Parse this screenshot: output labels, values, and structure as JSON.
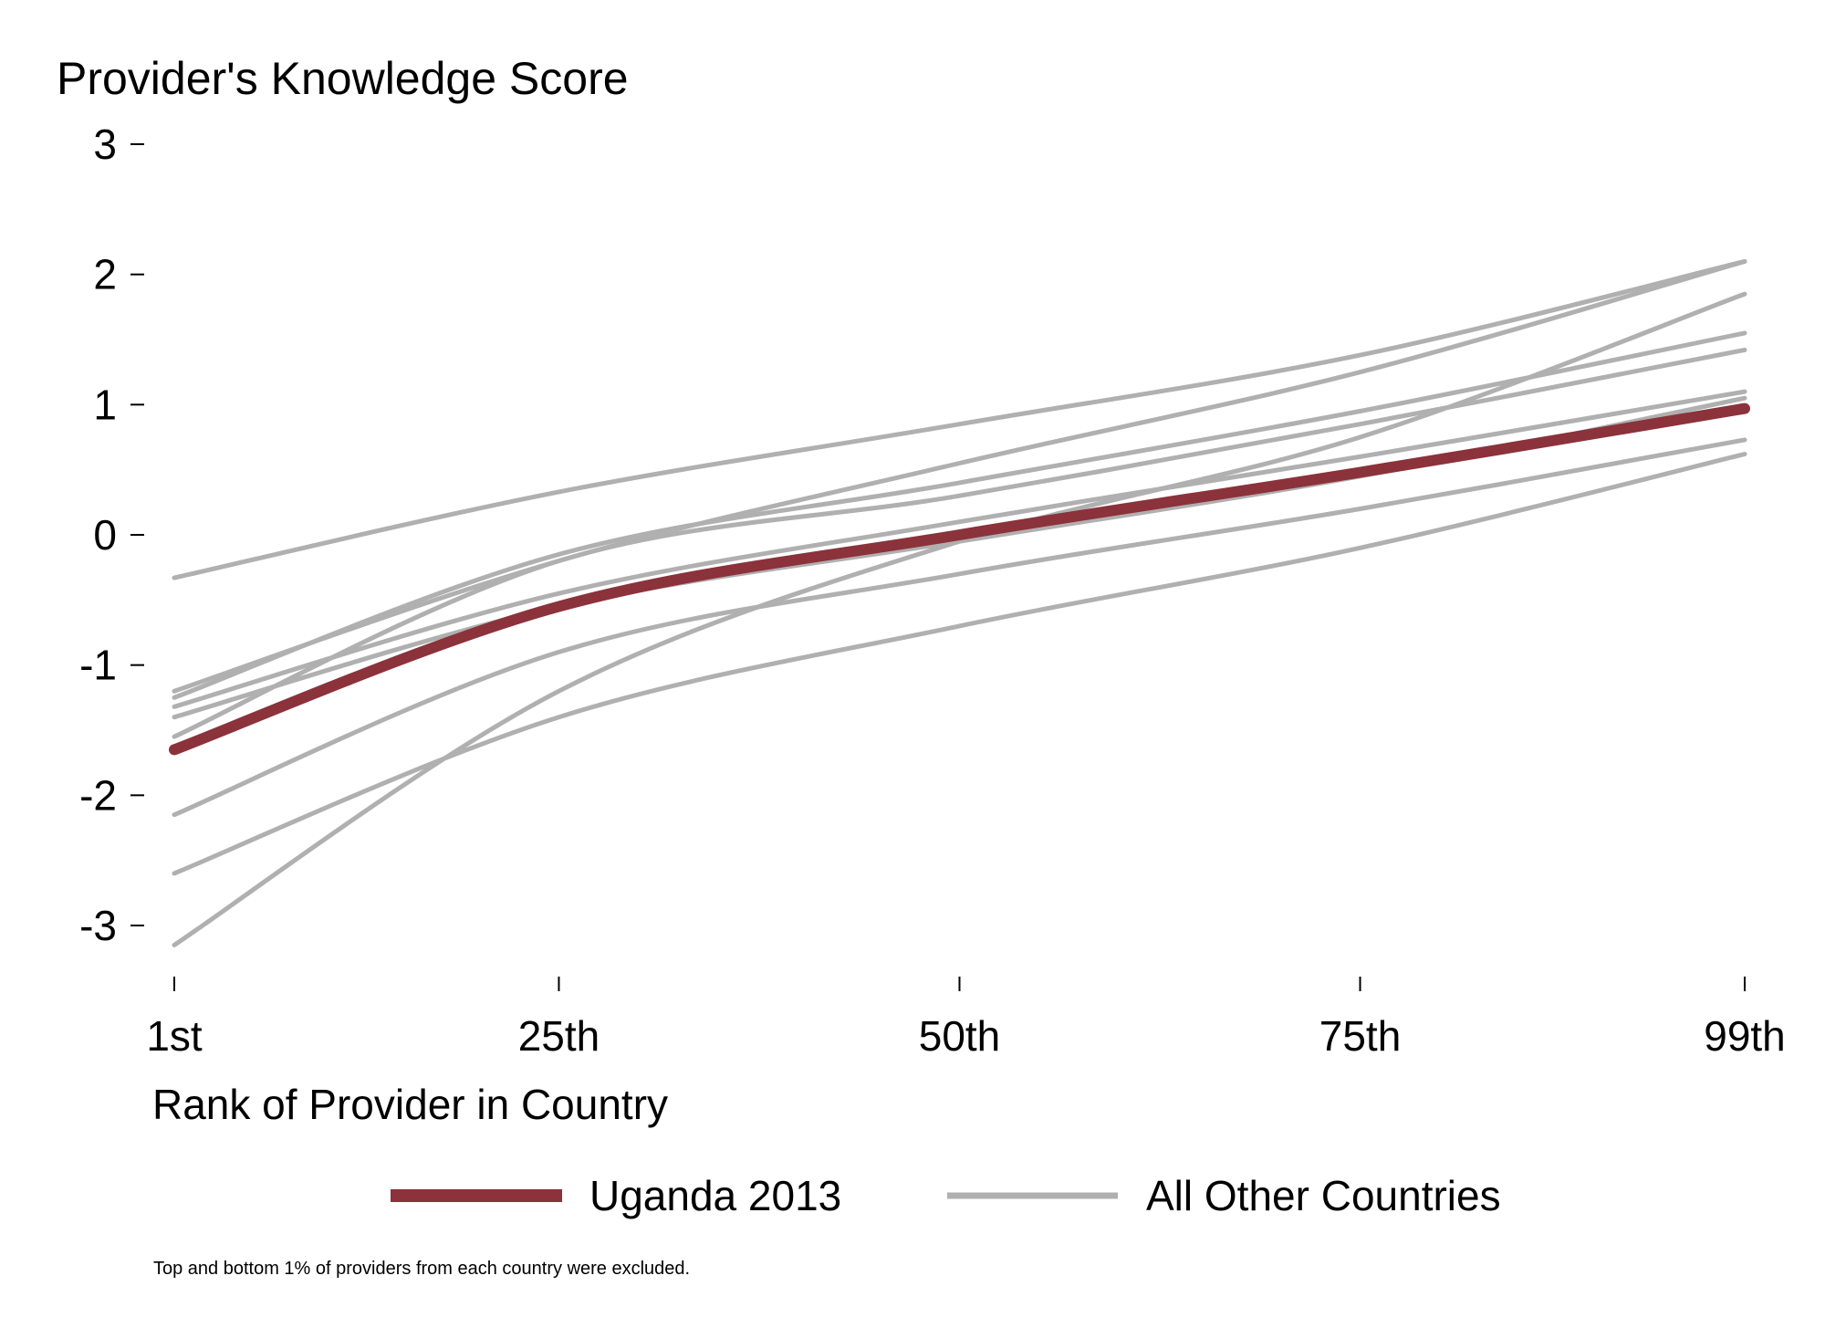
{
  "chart_data": {
    "type": "line",
    "title": "Provider's Knowledge Score",
    "xlabel": "Rank of Provider in Country",
    "ylabel": "",
    "x_ticks": [
      {
        "value": 1,
        "label": "1st"
      },
      {
        "value": 25,
        "label": "25th"
      },
      {
        "value": 50,
        "label": "50th"
      },
      {
        "value": 75,
        "label": "75th"
      },
      {
        "value": 99,
        "label": "99th"
      }
    ],
    "y_ticks": [
      {
        "value": 3,
        "label": "3"
      },
      {
        "value": 2,
        "label": "2"
      },
      {
        "value": 1,
        "label": "1"
      },
      {
        "value": 0,
        "label": "0"
      },
      {
        "value": -1,
        "label": "-1"
      },
      {
        "value": -2,
        "label": "-2"
      },
      {
        "value": -3,
        "label": "-3"
      }
    ],
    "xlim": [
      1,
      99
    ],
    "ylim": [
      -3.2,
      3
    ],
    "grid": false,
    "legend_position": "bottom",
    "legend": [
      {
        "label": "Uganda 2013",
        "color": "#8b323b"
      },
      {
        "label": "All Other Countries",
        "color": "#b0b0b0"
      }
    ],
    "highlight_color": "#8b323b",
    "other_color": "#b0b0b0",
    "x": [
      1,
      25,
      50,
      75,
      99
    ],
    "series": [
      {
        "group": "Uganda 2013",
        "values": [
          -1.65,
          -0.55,
          0.0,
          0.48,
          0.97
        ]
      },
      {
        "group": "All Other Countries",
        "values": [
          -0.33,
          0.33,
          0.85,
          1.38,
          2.1
        ]
      },
      {
        "group": "All Other Countries",
        "values": [
          -1.2,
          -0.2,
          0.55,
          1.25,
          2.1
        ]
      },
      {
        "group": "All Other Countries",
        "values": [
          -1.25,
          -0.15,
          0.4,
          0.95,
          1.55
        ]
      },
      {
        "group": "All Other Countries",
        "values": [
          -1.32,
          -0.45,
          0.1,
          0.6,
          1.1
        ]
      },
      {
        "group": "All Other Countries",
        "values": [
          -1.4,
          -0.55,
          -0.05,
          0.45,
          1.05
        ]
      },
      {
        "group": "All Other Countries",
        "values": [
          -1.55,
          -0.2,
          0.3,
          0.85,
          1.42
        ]
      },
      {
        "group": "All Other Countries",
        "values": [
          -2.15,
          -0.9,
          -0.3,
          0.2,
          0.73
        ]
      },
      {
        "group": "All Other Countries",
        "values": [
          -2.6,
          -1.4,
          -0.7,
          -0.1,
          0.62
        ]
      },
      {
        "group": "All Other Countries",
        "values": [
          -3.15,
          -1.2,
          -0.05,
          0.75,
          1.85
        ]
      }
    ],
    "footnote": "Top and bottom 1% of providers from each country were excluded."
  }
}
